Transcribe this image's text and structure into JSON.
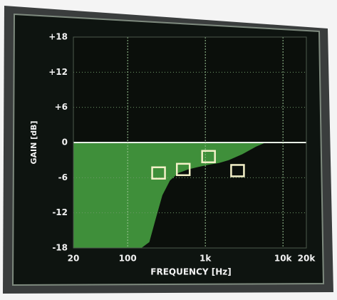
{
  "chart_data": {
    "type": "area",
    "xlabel": "FREQUENCY [Hz]",
    "ylabel": "GAIN [dB]",
    "xscale": "log",
    "xlim": [
      20,
      20000
    ],
    "ylim": [
      -18,
      18
    ],
    "xticks": [
      20,
      100,
      {
        "value": 1000,
        "label": "1k"
      },
      {
        "value": 10000,
        "label": "10k"
      },
      {
        "value": 20000,
        "label": "20k"
      }
    ],
    "yticks": [
      {
        "value": 18,
        "label": "+18"
      },
      {
        "value": 12,
        "label": "+12"
      },
      {
        "value": 6,
        "label": "+6"
      },
      0,
      -6,
      -12,
      -18
    ],
    "grid": true,
    "color": "#3f8f3a",
    "x": [
      20,
      150,
      190,
      230,
      280,
      350,
      450,
      600,
      800,
      1100,
      1500,
      2000,
      3000,
      4500,
      6000,
      20000
    ],
    "values": [
      -18,
      -18,
      -17,
      -13,
      -9,
      -6.5,
      -5.2,
      -4.6,
      -4.2,
      -3.8,
      -3.5,
      -3,
      -2,
      -0.7,
      0,
      0
    ],
    "markers": {
      "x": [
        250,
        520,
        1100,
        2600
      ],
      "values": [
        -5.2,
        -4.6,
        -2.4,
        -4.8
      ],
      "color": "#f3f0c8"
    }
  }
}
